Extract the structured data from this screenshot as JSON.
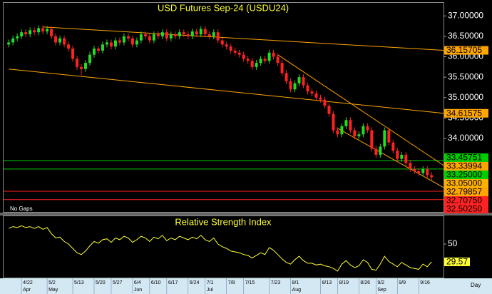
{
  "chart_data": [
    {
      "type": "candlestick",
      "title": "USD Futures Sep-24 (USDU24)",
      "annotation": "No Gaps",
      "x_label": "Day",
      "categories": [
        null,
        null,
        null,
        "4/22",
        null,
        null,
        null,
        null,
        null,
        "5/2",
        null,
        null,
        null,
        null,
        null,
        "5/13",
        null,
        null,
        null,
        null,
        "5/20",
        null,
        null,
        null,
        "5/27",
        null,
        null,
        null,
        null,
        "6/4",
        null,
        null,
        null,
        "6/10",
        null,
        null,
        null,
        "6/17",
        null,
        null,
        null,
        null,
        "6/24",
        null,
        null,
        null,
        "7/1",
        null,
        null,
        null,
        null,
        "7/8",
        null,
        null,
        null,
        "7/15",
        null,
        null,
        null,
        null,
        null,
        "7/23",
        null,
        null,
        null,
        null,
        "8/1",
        null,
        null,
        null,
        null,
        null,
        null,
        "8/13",
        null,
        null,
        null,
        "8/19",
        null,
        null,
        null,
        null,
        "8/26",
        null,
        null,
        null,
        "9/2",
        null,
        null,
        null,
        null,
        "9/9",
        null,
        null,
        null,
        null,
        "9/16",
        null,
        null,
        null
      ],
      "months": [
        null,
        null,
        null,
        "Apr",
        null,
        null,
        null,
        null,
        null,
        "May",
        null,
        null,
        null,
        null,
        null,
        null,
        null,
        null,
        null,
        null,
        null,
        null,
        null,
        null,
        null,
        null,
        null,
        null,
        null,
        "Jun",
        null,
        null,
        null,
        null,
        null,
        null,
        null,
        null,
        null,
        null,
        null,
        null,
        null,
        null,
        null,
        null,
        "Jul",
        null,
        null,
        null,
        null,
        null,
        null,
        null,
        null,
        null,
        null,
        null,
        null,
        null,
        null,
        null,
        null,
        null,
        null,
        null,
        "Aug",
        null,
        null,
        null,
        null,
        null,
        null,
        null,
        null,
        null,
        null,
        null,
        null,
        null,
        null,
        null,
        null,
        null,
        null,
        null,
        "Sep",
        null,
        null,
        null,
        null,
        null,
        null,
        null,
        null,
        null,
        null,
        null,
        null,
        null
      ],
      "open": [
        36.3,
        36.35,
        36.45,
        36.5,
        36.6,
        36.55,
        36.65,
        36.6,
        36.7,
        36.62,
        36.68,
        36.5,
        36.35,
        36.45,
        36.3,
        36.2,
        35.95,
        35.75,
        35.7,
        35.85,
        36.05,
        36.2,
        36.15,
        36.3,
        36.35,
        36.25,
        36.4,
        36.35,
        36.5,
        36.45,
        36.3,
        36.4,
        36.55,
        36.5,
        36.4,
        36.55,
        36.5,
        36.6,
        36.45,
        36.55,
        36.5,
        36.6,
        36.55,
        36.5,
        36.62,
        36.55,
        36.68,
        36.55,
        36.5,
        36.6,
        36.4,
        36.3,
        36.25,
        36.15,
        36.1,
        36.05,
        35.95,
        35.9,
        35.75,
        35.85,
        35.95,
        35.9,
        36.1,
        36.0,
        35.85,
        35.6,
        35.4,
        35.2,
        35.35,
        35.5,
        35.3,
        35.15,
        35.1,
        35.0,
        34.95,
        34.8,
        34.6,
        34.2,
        34.1,
        34.3,
        34.45,
        34.2,
        34.05,
        34.1,
        34.3,
        34.2,
        33.75,
        33.6,
        33.8,
        34.2,
        33.9,
        33.7,
        33.5,
        33.6,
        33.4,
        33.25,
        33.2,
        33.15,
        33.25,
        33.1
      ],
      "high": [
        36.42,
        36.52,
        36.57,
        36.67,
        36.67,
        36.72,
        36.72,
        36.77,
        36.77,
        36.75,
        36.75,
        36.57,
        36.52,
        36.52,
        36.37,
        36.27,
        36.02,
        35.82,
        35.92,
        36.12,
        36.27,
        36.27,
        36.37,
        36.42,
        36.42,
        36.47,
        36.47,
        36.57,
        36.57,
        36.52,
        36.47,
        36.62,
        36.62,
        36.57,
        36.62,
        36.62,
        36.67,
        36.67,
        36.62,
        36.62,
        36.67,
        36.67,
        36.62,
        36.69,
        36.69,
        36.75,
        36.75,
        36.62,
        36.67,
        36.67,
        36.47,
        36.37,
        36.32,
        36.22,
        36.17,
        36.12,
        36.02,
        35.97,
        35.92,
        36.02,
        36.02,
        36.17,
        36.17,
        36.07,
        35.92,
        35.67,
        35.47,
        35.42,
        35.57,
        35.57,
        35.37,
        35.22,
        35.17,
        35.07,
        35.02,
        34.87,
        34.67,
        34.27,
        34.37,
        34.52,
        34.52,
        34.27,
        34.17,
        34.37,
        34.37,
        34.27,
        33.82,
        33.87,
        34.27,
        34.27,
        33.97,
        33.77,
        33.67,
        33.67,
        33.47,
        33.32,
        33.27,
        33.32,
        33.32,
        33.17
      ],
      "low": [
        36.23,
        36.28,
        36.38,
        36.43,
        36.48,
        36.48,
        36.53,
        36.53,
        36.55,
        36.55,
        36.43,
        36.28,
        36.28,
        36.23,
        36.13,
        35.88,
        35.68,
        35.55,
        35.63,
        35.78,
        35.98,
        36.08,
        36.08,
        36.23,
        36.18,
        36.18,
        36.28,
        36.28,
        36.38,
        36.23,
        36.23,
        36.33,
        36.43,
        36.33,
        36.33,
        36.43,
        36.43,
        36.38,
        36.38,
        36.43,
        36.43,
        36.48,
        36.43,
        36.43,
        36.48,
        36.48,
        36.48,
        36.43,
        36.43,
        36.33,
        36.23,
        36.18,
        36.08,
        36.03,
        35.98,
        35.88,
        35.83,
        35.68,
        35.68,
        35.78,
        35.83,
        35.83,
        35.93,
        35.78,
        35.53,
        35.33,
        35.13,
        35.13,
        35.28,
        35.23,
        35.08,
        35.03,
        34.93,
        34.88,
        34.73,
        34.53,
        34.13,
        34.03,
        34.03,
        34.23,
        34.13,
        33.98,
        33.98,
        34.03,
        34.13,
        33.68,
        33.53,
        33.53,
        33.73,
        33.83,
        33.63,
        33.43,
        33.43,
        33.33,
        33.18,
        33.13,
        33.08,
        33.08,
        33.03,
        32.98
      ],
      "close": [
        36.35,
        36.45,
        36.5,
        36.6,
        36.55,
        36.65,
        36.6,
        36.7,
        36.62,
        36.68,
        36.5,
        36.35,
        36.45,
        36.3,
        36.2,
        35.95,
        35.75,
        35.7,
        35.85,
        36.05,
        36.2,
        36.15,
        36.3,
        36.35,
        36.25,
        36.4,
        36.35,
        36.5,
        36.45,
        36.3,
        36.4,
        36.55,
        36.5,
        36.4,
        36.55,
        36.5,
        36.6,
        36.45,
        36.55,
        36.5,
        36.6,
        36.55,
        36.5,
        36.62,
        36.55,
        36.68,
        36.55,
        36.5,
        36.6,
        36.4,
        36.3,
        36.25,
        36.15,
        36.1,
        36.05,
        35.95,
        35.9,
        35.75,
        35.85,
        35.95,
        35.9,
        36.1,
        36.0,
        35.85,
        35.6,
        35.4,
        35.2,
        35.35,
        35.5,
        35.3,
        35.15,
        35.1,
        35.0,
        34.95,
        34.8,
        34.6,
        34.2,
        34.1,
        34.3,
        34.45,
        34.2,
        34.05,
        34.1,
        34.3,
        34.2,
        33.75,
        33.6,
        33.8,
        34.2,
        33.9,
        33.7,
        33.5,
        33.6,
        33.4,
        33.25,
        33.2,
        33.15,
        33.25,
        33.1,
        33.05
      ],
      "up_color": "#22dd22",
      "down_color": "#ff2222",
      "xlim": [
        -1.2,
        101.8
      ],
      "ylim": [
        32.2,
        37.32
      ],
      "yticks": [
        {
          "value": 37,
          "label": "37.00000"
        },
        {
          "value": 36.5,
          "label": "36.50000"
        },
        {
          "value": 36,
          "label": "36.00000"
        },
        {
          "value": 35.5,
          "label": "35.50000"
        },
        {
          "value": 35,
          "label": "35.00000"
        },
        {
          "value": 34.5,
          "label": "34.50000"
        },
        {
          "value": 34,
          "label": "34.00000"
        }
      ],
      "trendlines": [
        {
          "x": [
            8,
            101.8
          ],
          "y": [
            36.73,
            36.15705
          ],
          "color": "#ffa500"
        },
        {
          "x": [
            0,
            101.8
          ],
          "y": [
            35.7,
            34.61575
          ],
          "color": "#ffa500"
        },
        {
          "x": [
            63,
            101.8
          ],
          "y": [
            36.05,
            33.33994
          ],
          "color": "#ffa500"
        },
        {
          "x": [
            76.8,
            101.8
          ],
          "y": [
            34.26,
            32.79857
          ],
          "color": "#ffa500"
        }
      ],
      "levels": [
        {
          "value": 33.45751,
          "color": "#00cc00",
          "line": true
        },
        {
          "value": 33.25,
          "label": "33.25000",
          "color": "#00cc00",
          "line": true
        },
        {
          "value": 33.05,
          "label": "33.05000",
          "color": "#ffb000",
          "line": false
        },
        {
          "value": 32.7075,
          "label": "32.70750",
          "color": "#ff2222",
          "line": true
        },
        {
          "value": 32.5025,
          "label": "32.50250",
          "color": "#ff2222",
          "line": true
        }
      ]
    },
    {
      "type": "line",
      "title": "Relative Strength Index",
      "color": "#ffff33",
      "values": [
        68,
        70,
        69,
        71,
        69,
        70,
        68,
        70,
        67,
        69,
        62,
        57,
        58,
        53,
        50,
        45,
        40,
        38,
        42,
        48,
        53,
        51,
        55,
        56,
        52,
        57,
        55,
        59,
        57,
        52,
        55,
        59,
        57,
        53,
        58,
        56,
        60,
        54,
        57,
        55,
        59,
        57,
        55,
        58,
        56,
        60,
        55,
        53,
        57,
        50,
        47,
        45,
        42,
        41,
        40,
        38,
        37,
        34,
        37,
        40,
        38,
        46,
        43,
        38,
        33,
        29,
        27,
        32,
        36,
        31,
        28,
        28,
        26,
        27,
        25,
        24,
        22,
        19,
        27,
        31,
        26,
        23,
        25,
        32,
        29,
        21,
        20,
        27,
        36,
        30,
        27,
        24,
        29,
        26,
        23,
        22,
        21,
        27,
        24,
        29.57
      ],
      "xlim": [
        -1.2,
        101.8
      ],
      "ylim": [
        11.5,
        82
      ],
      "yticks": [
        50
      ]
    }
  ]
}
